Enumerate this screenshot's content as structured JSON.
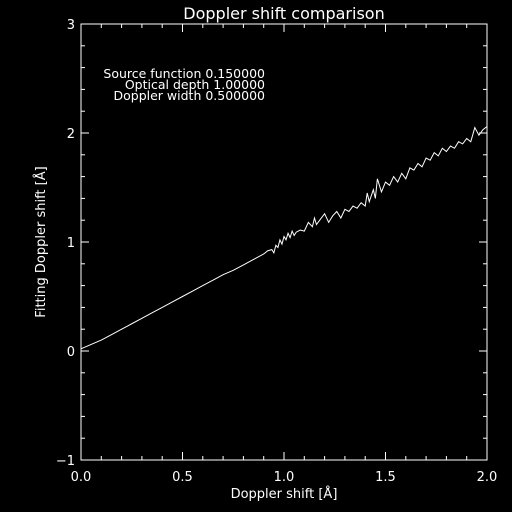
{
  "colors": {
    "background": "#000000",
    "foreground": "#ffffff"
  },
  "chart_data": {
    "type": "line",
    "title": "Doppler shift comparison",
    "xlabel": "Doppler shift [Å]",
    "ylabel": "Fitting Doppler shift [Å]",
    "xlim": [
      0.0,
      2.0
    ],
    "ylim": [
      -1,
      3
    ],
    "xticks": [
      {
        "value": 0.0,
        "label": "0.0"
      },
      {
        "value": 0.5,
        "label": "0.5"
      },
      {
        "value": 1.0,
        "label": "1.0"
      },
      {
        "value": 1.5,
        "label": "1.5"
      },
      {
        "value": 2.0,
        "label": "2.0"
      }
    ],
    "yticks": [
      {
        "value": -1,
        "label": "−1"
      },
      {
        "value": 0,
        "label": "0"
      },
      {
        "value": 1,
        "label": "1"
      },
      {
        "value": 2,
        "label": "2"
      },
      {
        "value": 3,
        "label": "3"
      }
    ],
    "annotations": [
      "Source function  0.150000",
      "Optical depth  1.00000",
      "Doppler width  0.500000"
    ],
    "grid": false,
    "series": [
      {
        "x": [
          0.0,
          0.05,
          0.1,
          0.15,
          0.2,
          0.25,
          0.3,
          0.35,
          0.4,
          0.45,
          0.5,
          0.55,
          0.6,
          0.65,
          0.7,
          0.75,
          0.8,
          0.85,
          0.9,
          0.92,
          0.94,
          0.95,
          0.96,
          0.97,
          0.98,
          0.99,
          1.0,
          1.01,
          1.02,
          1.03,
          1.04,
          1.05,
          1.06,
          1.08,
          1.1,
          1.12,
          1.14,
          1.15,
          1.16,
          1.18,
          1.2,
          1.22,
          1.24,
          1.26,
          1.28,
          1.3,
          1.32,
          1.34,
          1.36,
          1.38,
          1.4,
          1.41,
          1.42,
          1.44,
          1.45,
          1.46,
          1.48,
          1.5,
          1.52,
          1.54,
          1.56,
          1.58,
          1.6,
          1.62,
          1.64,
          1.66,
          1.68,
          1.7,
          1.72,
          1.74,
          1.76,
          1.78,
          1.8,
          1.82,
          1.84,
          1.86,
          1.88,
          1.9,
          1.92,
          1.94,
          1.96,
          1.98,
          2.0
        ],
        "y": [
          0.02,
          0.06,
          0.1,
          0.15,
          0.2,
          0.25,
          0.3,
          0.35,
          0.4,
          0.45,
          0.5,
          0.55,
          0.6,
          0.65,
          0.7,
          0.74,
          0.79,
          0.84,
          0.89,
          0.92,
          0.93,
          0.9,
          0.97,
          0.95,
          1.02,
          0.98,
          1.05,
          1.02,
          1.08,
          1.04,
          1.1,
          1.06,
          1.09,
          1.11,
          1.1,
          1.18,
          1.14,
          1.22,
          1.16,
          1.21,
          1.26,
          1.18,
          1.24,
          1.28,
          1.22,
          1.3,
          1.28,
          1.33,
          1.31,
          1.36,
          1.33,
          1.45,
          1.37,
          1.48,
          1.4,
          1.58,
          1.46,
          1.55,
          1.52,
          1.6,
          1.55,
          1.63,
          1.58,
          1.68,
          1.66,
          1.72,
          1.69,
          1.77,
          1.75,
          1.82,
          1.79,
          1.86,
          1.83,
          1.88,
          1.86,
          1.92,
          1.9,
          1.95,
          1.92,
          2.05,
          1.98,
          2.03,
          2.06
        ]
      }
    ]
  }
}
